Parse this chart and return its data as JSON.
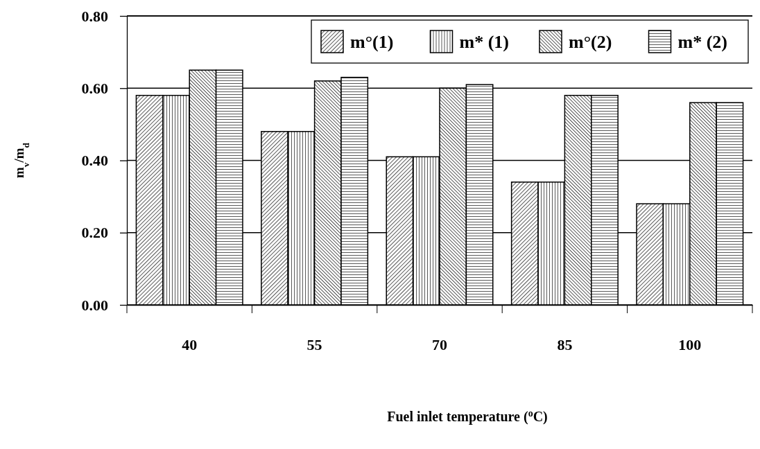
{
  "chart_data": {
    "type": "bar",
    "xlabel": "Fuel inlet temperature ($^{o}$C)",
    "ylabel": "m$_{v}$/m$_{d}$",
    "categories": [
      "40",
      "55",
      "70",
      "85",
      "100"
    ],
    "series": [
      {
        "name": "m°(1)",
        "color": "#000000",
        "values": [
          0.58,
          0.48,
          0.41,
          0.34,
          0.28
        ]
      },
      {
        "name": "m* (1)",
        "color": "#000000",
        "values": [
          0.58,
          0.48,
          0.41,
          0.34,
          0.28
        ]
      },
      {
        "name": "m°(2)",
        "color": "#000000",
        "values": [
          0.65,
          0.62,
          0.6,
          0.58,
          0.56
        ]
      },
      {
        "name": "m* (2)",
        "color": "#000000",
        "values": [
          0.65,
          0.63,
          0.61,
          0.58,
          0.56
        ]
      }
    ],
    "ylim": [
      0,
      0.8
    ],
    "yticks": [
      {
        "value": 0,
        "label": "0.00"
      },
      {
        "value": 0.2,
        "label": "0.20"
      },
      {
        "value": 0.4,
        "label": "0.40"
      },
      {
        "value": 0.6,
        "label": "0.60"
      },
      {
        "value": 0.8,
        "label": "0.80"
      }
    ],
    "grid": "y",
    "legend": "top right"
  }
}
